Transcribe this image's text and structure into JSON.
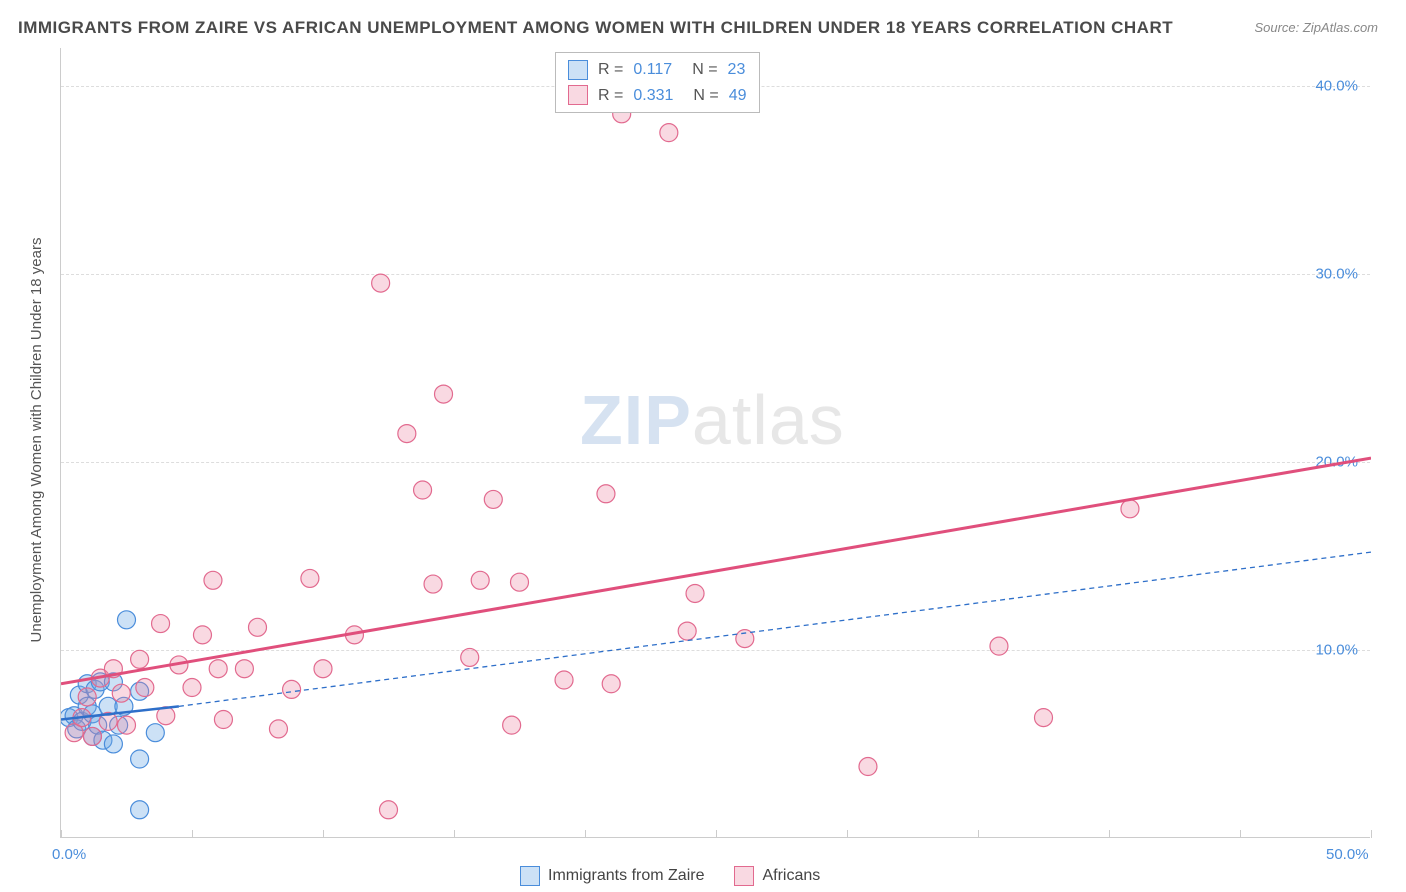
{
  "title": "IMMIGRANTS FROM ZAIRE VS AFRICAN UNEMPLOYMENT AMONG WOMEN WITH CHILDREN UNDER 18 YEARS CORRELATION CHART",
  "source": "Source: ZipAtlas.com",
  "y_axis_label": "Unemployment Among Women with Children Under 18 years",
  "watermark_a": "ZIP",
  "watermark_b": "atlas",
  "chart": {
    "type": "scatter",
    "xlim": [
      0,
      50
    ],
    "ylim": [
      0,
      42
    ],
    "x_ticks": [
      0,
      5,
      10,
      15,
      20,
      25,
      30,
      35,
      40,
      45,
      50
    ],
    "x_tick_labels": {
      "0": "0.0%",
      "50": "50.0%"
    },
    "y_ticks": [
      10,
      20,
      30,
      40
    ],
    "y_tick_labels": {
      "10": "10.0%",
      "20": "20.0%",
      "30": "30.0%",
      "40": "40.0%"
    },
    "background_color": "#ffffff",
    "grid_color": "#dddddd",
    "axis_color": "#cccccc",
    "tick_label_color": "#4a8ddb",
    "marker_radius": 9,
    "marker_stroke_width": 1.2,
    "series": [
      {
        "name": "Immigrants from Zaire",
        "fill": "rgba(110,170,230,0.35)",
        "stroke": "#4a8ddb",
        "R_label": "R =",
        "R": "0.117",
        "N_label": "N =",
        "N": "23",
        "trend": {
          "x1": 0,
          "y1": 6.3,
          "x2": 4.5,
          "y2": 7.0,
          "stroke": "#2e6fc9",
          "width": 2.5,
          "dash": "none",
          "ext_x2": 50,
          "ext_y2": 15.2,
          "ext_dash": "5,4",
          "ext_width": 1.3
        },
        "points": [
          [
            0.3,
            6.4
          ],
          [
            0.5,
            6.5
          ],
          [
            0.6,
            5.8
          ],
          [
            0.7,
            7.6
          ],
          [
            0.8,
            6.2
          ],
          [
            1.0,
            7.0
          ],
          [
            1.0,
            8.2
          ],
          [
            1.2,
            6.6
          ],
          [
            1.2,
            5.4
          ],
          [
            1.3,
            7.9
          ],
          [
            1.4,
            6.0
          ],
          [
            1.5,
            8.3
          ],
          [
            1.6,
            5.2
          ],
          [
            1.8,
            7.0
          ],
          [
            2.0,
            5.0
          ],
          [
            2.0,
            8.3
          ],
          [
            2.2,
            6.0
          ],
          [
            2.4,
            7.0
          ],
          [
            2.5,
            11.6
          ],
          [
            3.0,
            4.2
          ],
          [
            3.0,
            7.8
          ],
          [
            3.6,
            5.6
          ],
          [
            3.0,
            1.5
          ]
        ]
      },
      {
        "name": "Africans",
        "fill": "rgba(235,130,160,0.3)",
        "stroke": "#e26a8f",
        "R_label": "R =",
        "R": "0.331",
        "N_label": "N =",
        "N": "49",
        "trend": {
          "x1": 0,
          "y1": 8.2,
          "x2": 50,
          "y2": 20.2,
          "stroke": "#e04f7c",
          "width": 3,
          "dash": "none"
        },
        "points": [
          [
            0.5,
            5.6
          ],
          [
            0.8,
            6.4
          ],
          [
            1.0,
            7.5
          ],
          [
            1.2,
            5.4
          ],
          [
            1.5,
            8.5
          ],
          [
            1.8,
            6.2
          ],
          [
            2.0,
            9.0
          ],
          [
            2.3,
            7.7
          ],
          [
            2.5,
            6.0
          ],
          [
            3.0,
            9.5
          ],
          [
            3.2,
            8.0
          ],
          [
            3.8,
            11.4
          ],
          [
            4.5,
            9.2
          ],
          [
            5.0,
            8.0
          ],
          [
            5.4,
            10.8
          ],
          [
            5.8,
            13.7
          ],
          [
            6.0,
            9.0
          ],
          [
            6.2,
            6.3
          ],
          [
            7.0,
            9.0
          ],
          [
            7.5,
            11.2
          ],
          [
            8.3,
            5.8
          ],
          [
            9.5,
            13.8
          ],
          [
            10.0,
            9.0
          ],
          [
            11.2,
            10.8
          ],
          [
            12.2,
            29.5
          ],
          [
            12.5,
            1.5
          ],
          [
            13.2,
            21.5
          ],
          [
            13.8,
            18.5
          ],
          [
            14.2,
            13.5
          ],
          [
            14.6,
            23.6
          ],
          [
            15.6,
            9.6
          ],
          [
            16.0,
            13.7
          ],
          [
            16.5,
            18.0
          ],
          [
            17.2,
            6.0
          ],
          [
            17.5,
            13.6
          ],
          [
            19.2,
            8.4
          ],
          [
            20.8,
            18.3
          ],
          [
            21.4,
            38.5
          ],
          [
            23.2,
            37.5
          ],
          [
            23.9,
            11.0
          ],
          [
            24.2,
            13.0
          ],
          [
            26.1,
            10.6
          ],
          [
            30.8,
            3.8
          ],
          [
            35.8,
            10.2
          ],
          [
            37.5,
            6.4
          ],
          [
            40.8,
            17.5
          ],
          [
            21.0,
            8.2
          ],
          [
            4.0,
            6.5
          ],
          [
            8.8,
            7.9
          ]
        ]
      }
    ]
  },
  "legend_bottom": [
    {
      "swatch_fill": "rgba(110,170,230,0.35)",
      "swatch_stroke": "#4a8ddb",
      "label": "Immigrants from Zaire"
    },
    {
      "swatch_fill": "rgba(235,130,160,0.3)",
      "swatch_stroke": "#e26a8f",
      "label": "Africans"
    }
  ]
}
